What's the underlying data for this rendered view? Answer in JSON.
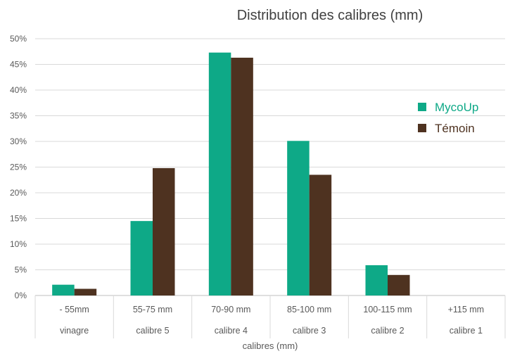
{
  "chart_data": {
    "type": "bar",
    "title": "Distribution des calibres (mm)",
    "xlabel": "calibres (mm)",
    "ylabel": "",
    "ylim": [
      0,
      50
    ],
    "y_ticks": [
      "0%",
      "5%",
      "10%",
      "15%",
      "20%",
      "25%",
      "30%",
      "35%",
      "40%",
      "45%",
      "50%"
    ],
    "grid": true,
    "legend_position": "right",
    "categories": [
      "- 55mm",
      "55-75 mm",
      "70-90 mm",
      "85-100 mm",
      "100-115 mm",
      "+115 mm"
    ],
    "category_groups": [
      "vinagre",
      "calibre 5",
      "calibre 4",
      "calibre 3",
      "calibre 2",
      "calibre 1"
    ],
    "series": [
      {
        "name": "MycoUp",
        "color": "#0EA987",
        "values": [
          2.1,
          14.5,
          47.3,
          30.1,
          5.9,
          0
        ]
      },
      {
        "name": "Témoin",
        "color": "#4E3220",
        "values": [
          1.3,
          24.8,
          46.3,
          23.5,
          4.0,
          0
        ]
      }
    ]
  }
}
